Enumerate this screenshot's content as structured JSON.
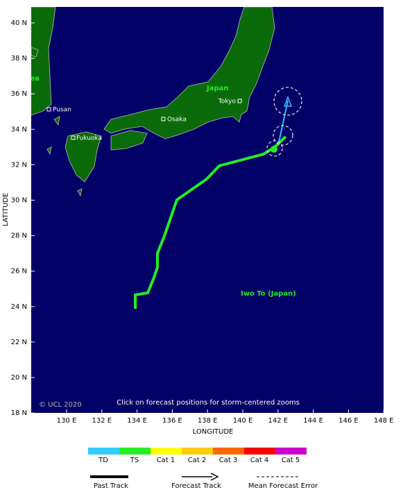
{
  "map": {
    "y_axis": {
      "title": "LATITUDE",
      "ticks": [
        "40 N",
        "38 N",
        "36 N",
        "34 N",
        "32 N",
        "30 N",
        "28 N",
        "26 N",
        "24 N",
        "22 N",
        "20 N",
        "18 N"
      ]
    },
    "x_axis": {
      "title": "LONGITUDE",
      "ticks": [
        "130 E",
        "132 E",
        "134 E",
        "136 E",
        "138 E",
        "140 E",
        "142 E",
        "144 E",
        "146 E",
        "148 E"
      ]
    },
    "places": {
      "korea": "Korea",
      "japan": "Japan",
      "tokyo": "Tokyo",
      "osaka": "Osaka",
      "pusan": "Pusan",
      "fukuoka": "Fukuoka",
      "iwo_to": "Iwo To (Japan)"
    },
    "copyright": "© UCL 2020",
    "notice": "Click on forecast positions for storm-centered zooms"
  },
  "legend": {
    "categories": [
      "TD",
      "TS",
      "Cat 1",
      "Cat 2",
      "Cat 3",
      "Cat 4",
      "Cat 5"
    ],
    "lines": [
      "Past Track",
      "Forecast Track",
      "Mean Forecast Error"
    ]
  }
}
